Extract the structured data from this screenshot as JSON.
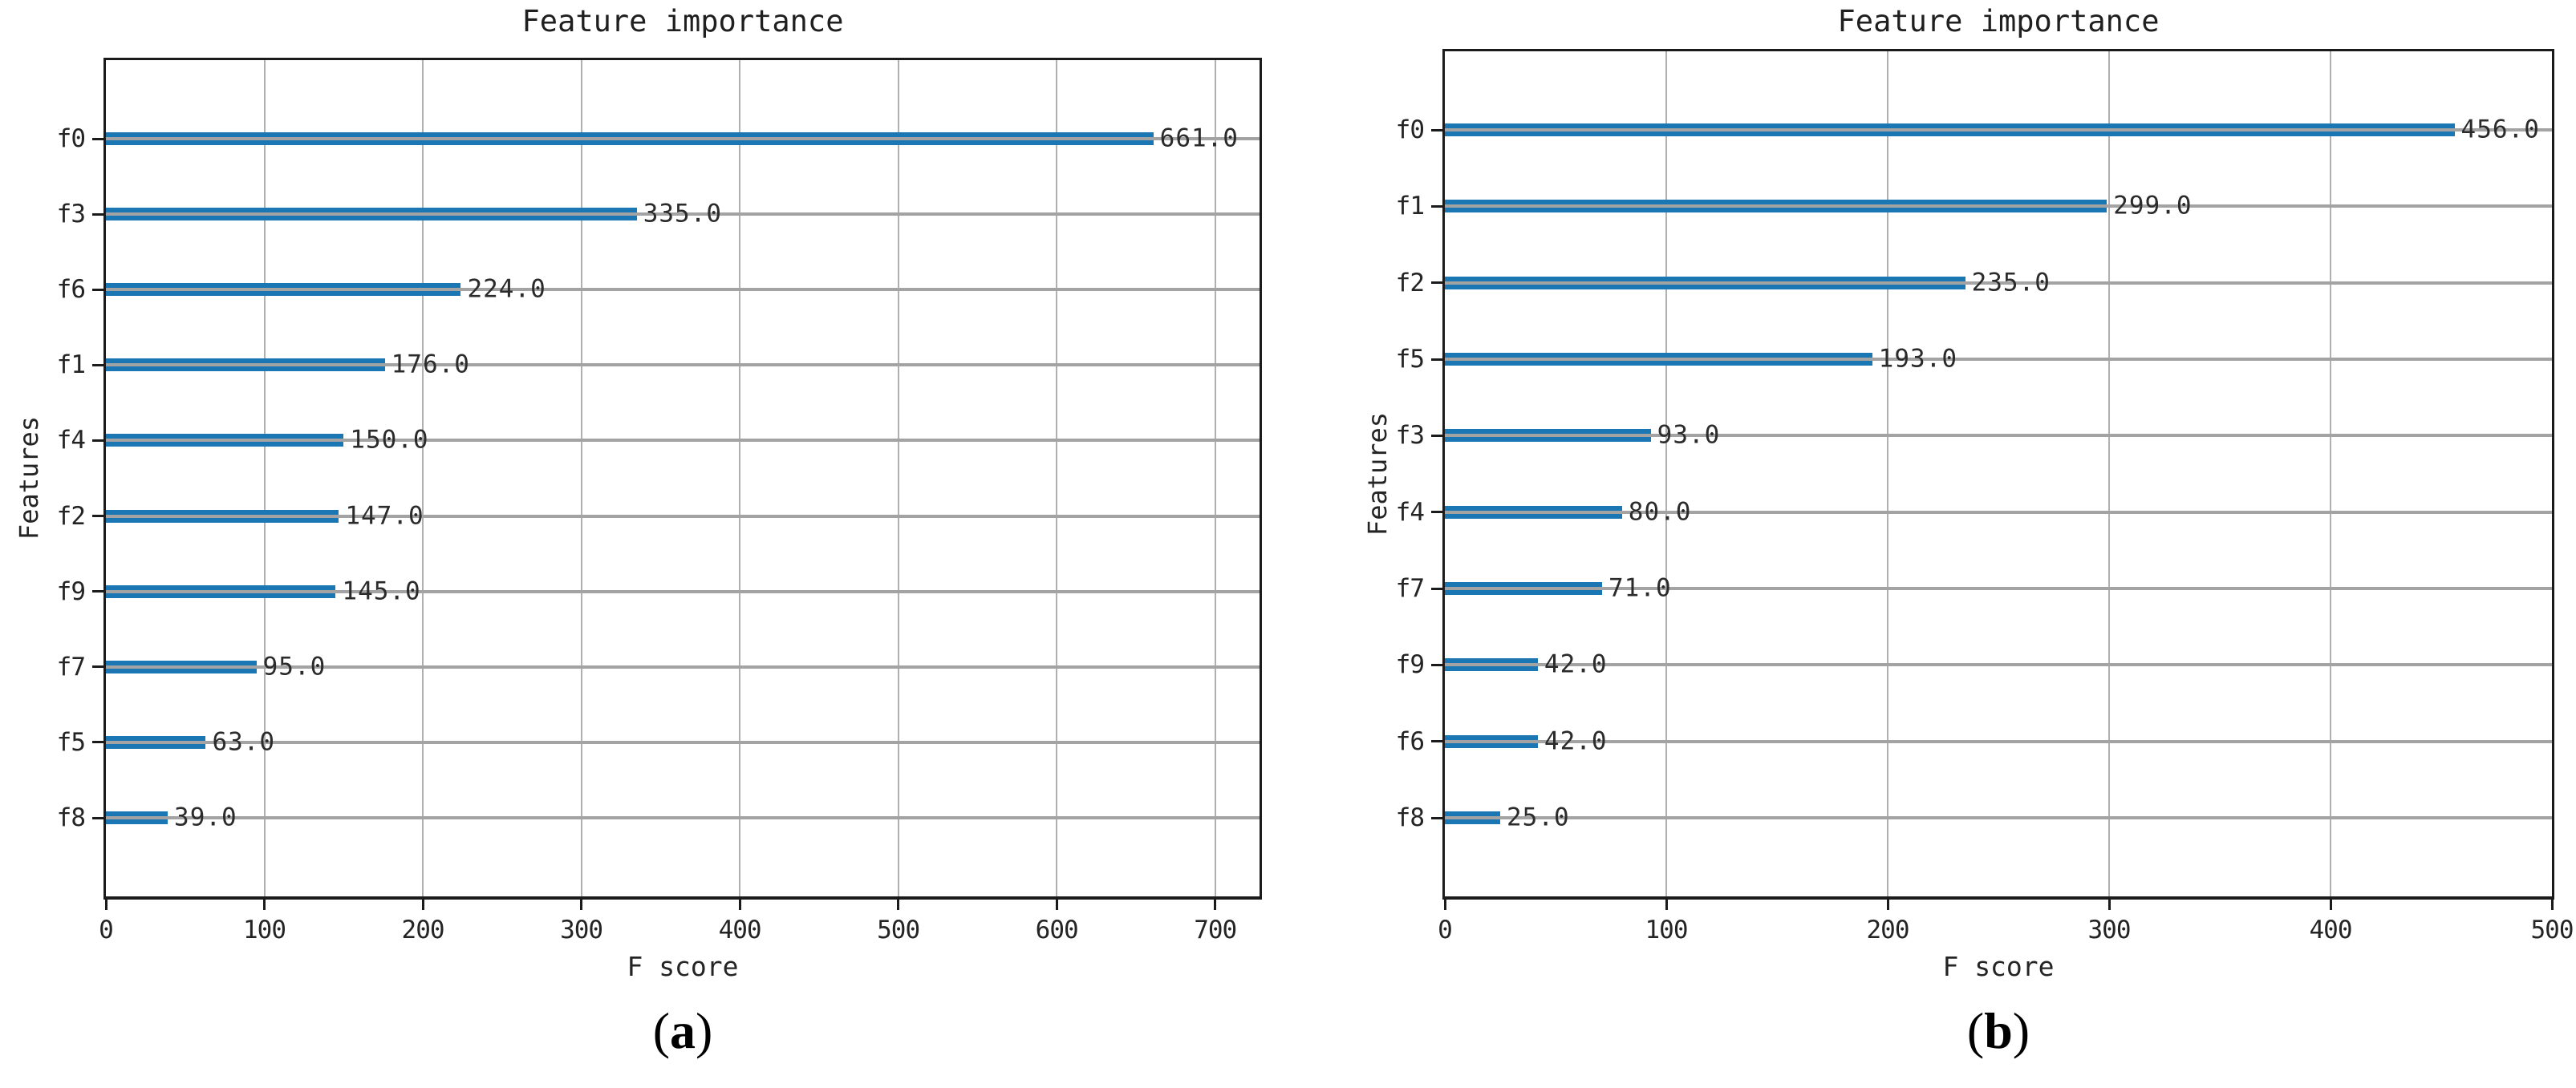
{
  "page": {
    "background": "#ffffff"
  },
  "chart_data": [
    {
      "type": "bar",
      "orientation": "horizontal",
      "title": "Feature importance",
      "xlabel": "F score",
      "ylabel": "Features",
      "categories": [
        "f0",
        "f3",
        "f6",
        "f1",
        "f4",
        "f2",
        "f9",
        "f7",
        "f5",
        "f8"
      ],
      "values": [
        661,
        335,
        224,
        176,
        150,
        147,
        145,
        95,
        63,
        39
      ],
      "value_labels": [
        "661.0",
        "335.0",
        "224.0",
        "176.0",
        "150.0",
        "147.0",
        "145.0",
        "95.0",
        "63.0",
        "39.0"
      ],
      "xlim": [
        0,
        728
      ],
      "xticks": [
        0,
        100,
        200,
        300,
        400,
        500,
        600,
        700
      ],
      "xtick_labels": [
        "0",
        "100",
        "200",
        "300",
        "400",
        "500",
        "600",
        "700"
      ],
      "grid": true,
      "legend": false,
      "bar_color": "#1b77b4",
      "grid_color": "#a6a6a6",
      "axis_color": "#1b1b1b",
      "text_color": "#242424",
      "caption": "(a)",
      "caption_open": "(",
      "caption_letter": "a",
      "caption_close": ")"
    },
    {
      "type": "bar",
      "orientation": "horizontal",
      "title": "Feature importance",
      "xlabel": "F score",
      "ylabel": "Features",
      "categories": [
        "f0",
        "f1",
        "f2",
        "f5",
        "f3",
        "f4",
        "f7",
        "f9",
        "f6",
        "f8"
      ],
      "values": [
        456,
        299,
        235,
        193,
        93,
        80,
        71,
        42,
        42,
        25
      ],
      "value_labels": [
        "456.0",
        "299.0",
        "235.0",
        "193.0",
        "93.0",
        "80.0",
        "71.0",
        "42.0",
        "42.0",
        "25.0"
      ],
      "xlim": [
        0,
        500
      ],
      "xticks": [
        0,
        100,
        200,
        300,
        400,
        500
      ],
      "xtick_labels": [
        "0",
        "100",
        "200",
        "300",
        "400",
        "500"
      ],
      "grid": true,
      "legend": false,
      "bar_color": "#1b77b4",
      "grid_color": "#a6a6a6",
      "axis_color": "#1b1b1b",
      "text_color": "#242424",
      "caption": "(b)",
      "caption_open": "(",
      "caption_letter": "b",
      "caption_close": ")"
    }
  ]
}
